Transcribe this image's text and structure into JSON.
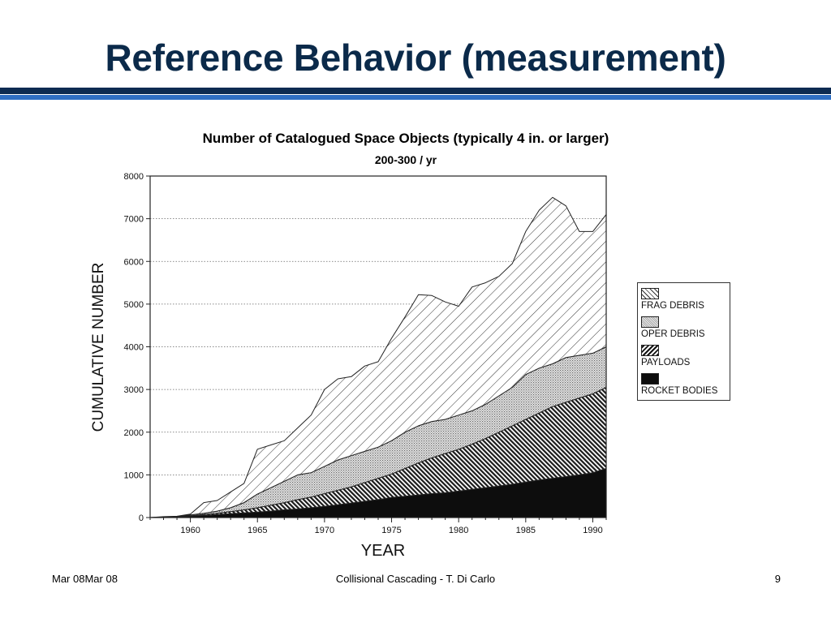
{
  "slide": {
    "title": "Reference Behavior (measurement)",
    "colors": {
      "title": "#0b2a4a",
      "rule_dark": "#0d2b52",
      "rule_light": "#2f6fc4"
    }
  },
  "footer": {
    "left": "Mar 08Mar 08",
    "center": "Collisional Cascading - T. Di Carlo",
    "right": "9"
  },
  "chart_data": {
    "type": "area",
    "stacked": true,
    "title": "Number of Catalogued Space Objects (typically 4 in. or larger)",
    "subtitle": "200-300 / yr",
    "xlabel": "YEAR",
    "ylabel": "CUMULATIVE NUMBER",
    "xlim": [
      1957,
      1991
    ],
    "ylim": [
      0,
      8000
    ],
    "x_ticks": [
      1960,
      1965,
      1970,
      1975,
      1980,
      1985,
      1990
    ],
    "y_ticks": [
      0,
      1000,
      2000,
      3000,
      4000,
      5000,
      6000,
      7000,
      8000
    ],
    "y_tick_labels": [
      "0",
      "1000",
      "2000",
      "3000",
      "4000",
      "5000",
      "6000",
      "7000",
      "8000"
    ],
    "grid": "horizontal dotted",
    "legend_position": "right",
    "x": [
      1957,
      1958,
      1959,
      1960,
      1961,
      1962,
      1963,
      1964,
      1965,
      1966,
      1967,
      1968,
      1969,
      1970,
      1971,
      1972,
      1973,
      1974,
      1975,
      1976,
      1977,
      1978,
      1979,
      1980,
      1981,
      1982,
      1983,
      1984,
      1985,
      1986,
      1987,
      1988,
      1989,
      1990,
      1991
    ],
    "series": [
      {
        "name": "ROCKET BODIES",
        "pattern": "solid black",
        "cumulative": [
          0,
          5,
          10,
          30,
          50,
          70,
          90,
          110,
          130,
          150,
          180,
          200,
          230,
          260,
          300,
          340,
          380,
          420,
          470,
          500,
          530,
          560,
          580,
          620,
          660,
          700,
          740,
          780,
          830,
          880,
          920,
          960,
          1000,
          1050,
          1150
        ]
      },
      {
        "name": "PAYLOADS",
        "pattern": "dense diagonal hatch",
        "cumulative": [
          0,
          5,
          15,
          40,
          70,
          100,
          140,
          180,
          230,
          290,
          350,
          420,
          480,
          560,
          640,
          720,
          820,
          920,
          1020,
          1150,
          1280,
          1400,
          1500,
          1600,
          1720,
          1850,
          2000,
          2150,
          2300,
          2450,
          2600,
          2700,
          2800,
          2900,
          3050
        ]
      },
      {
        "name": "OPER DEBRIS",
        "pattern": "fine crosshatch",
        "cumulative": [
          0,
          10,
          20,
          60,
          100,
          150,
          230,
          350,
          550,
          700,
          850,
          1000,
          1050,
          1200,
          1350,
          1450,
          1550,
          1650,
          1800,
          2000,
          2150,
          2250,
          2300,
          2400,
          2500,
          2650,
          2850,
          3050,
          3350,
          3500,
          3600,
          3750,
          3800,
          3850,
          4000
        ]
      },
      {
        "name": "FRAG DEBRIS",
        "pattern": "sparse diagonal lines",
        "cumulative": [
          0,
          20,
          30,
          80,
          350,
          400,
          600,
          800,
          1600,
          1700,
          1800,
          2100,
          2400,
          3000,
          3250,
          3300,
          3550,
          3650,
          4200,
          4700,
          5220,
          5200,
          5050,
          4950,
          5400,
          5500,
          5650,
          5950,
          6700,
          7200,
          7500,
          7300,
          6700,
          6700,
          7100
        ]
      }
    ]
  }
}
